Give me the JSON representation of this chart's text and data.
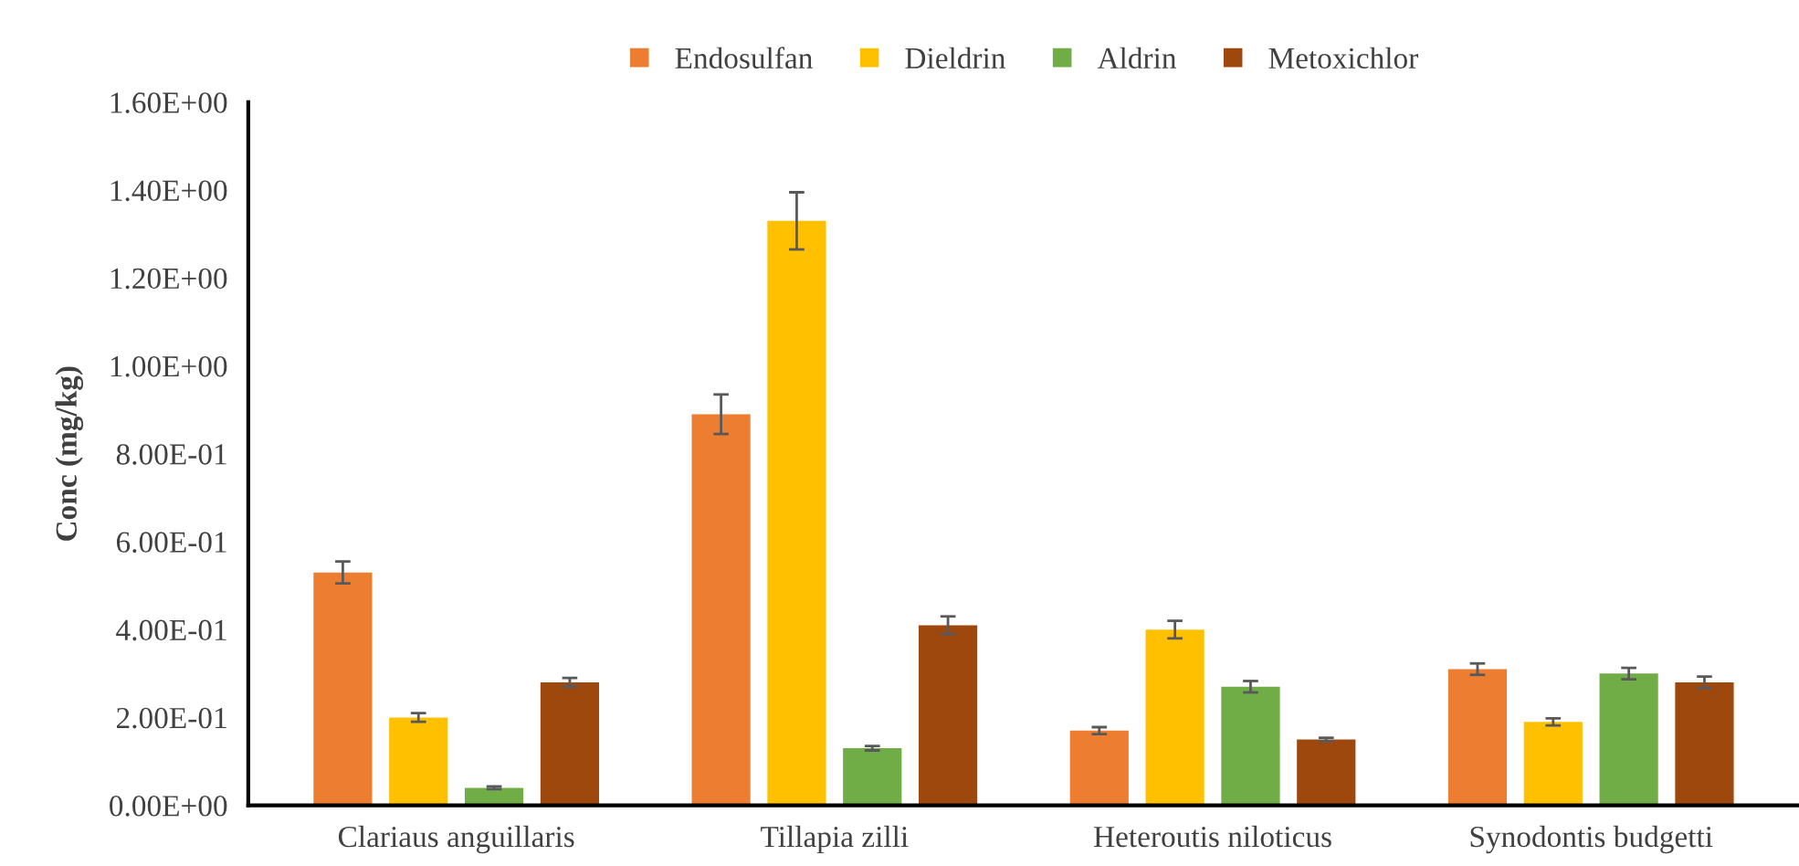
{
  "chart_data": {
    "type": "bar",
    "ylabel": "Conc (mg/kg)",
    "categories": [
      "Clariaus anguillaris",
      "Tillapia zilli",
      "Heteroutis niloticus",
      "Synodontis budgetti"
    ],
    "series": [
      {
        "name": "Endosulfan",
        "color": "#ed7d31",
        "values": [
          0.53,
          0.89,
          0.17,
          0.31
        ],
        "errors": [
          0.025,
          0.045,
          0.008,
          0.013
        ]
      },
      {
        "name": "Dieldrin",
        "color": "#ffc000",
        "values": [
          0.2,
          1.33,
          0.4,
          0.19
        ],
        "errors": [
          0.01,
          0.065,
          0.02,
          0.008
        ]
      },
      {
        "name": "Aldrin",
        "color": "#70ad47",
        "values": [
          0.04,
          0.13,
          0.27,
          0.3
        ],
        "errors": [
          0.003,
          0.005,
          0.013,
          0.013
        ]
      },
      {
        "name": "Metoxichlor",
        "color": "#9e480e",
        "values": [
          0.28,
          0.41,
          0.15,
          0.28
        ],
        "errors": [
          0.01,
          0.02,
          0.004,
          0.013
        ]
      }
    ],
    "ylim": [
      0,
      1.6
    ],
    "yticks": [
      {
        "value": 0,
        "label": "0.00E+00"
      },
      {
        "value": 0.2,
        "label": "2.00E-01"
      },
      {
        "value": 0.4,
        "label": "4.00E-01"
      },
      {
        "value": 0.6,
        "label": "6.00E-01"
      },
      {
        "value": 0.8,
        "label": "8.00E-01"
      },
      {
        "value": 1.0,
        "label": "1.00E+00"
      },
      {
        "value": 1.2,
        "label": "1.20E+00"
      },
      {
        "value": 1.4,
        "label": "1.40E+00"
      },
      {
        "value": 1.6,
        "label": "1.60E+00"
      }
    ],
    "grid": false,
    "legend": "top"
  }
}
